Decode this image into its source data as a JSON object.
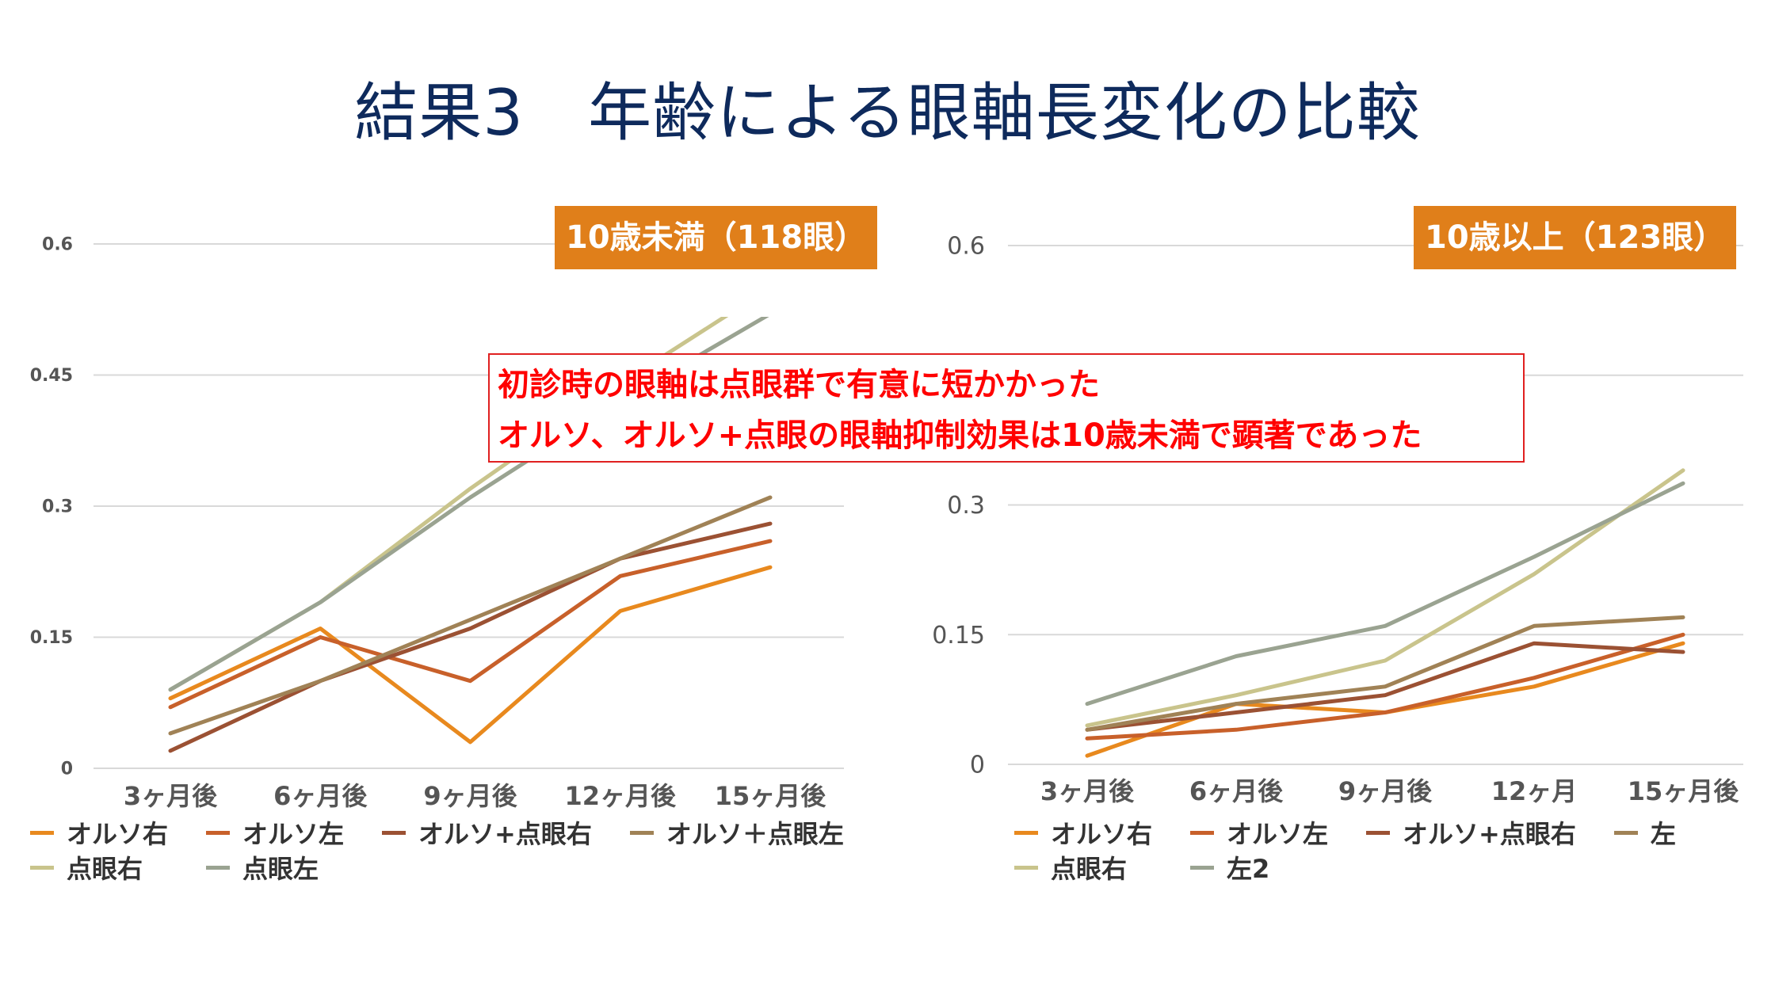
{
  "title": "結果3　年齢による眼軸長変化の比較",
  "note": {
    "line1": "初診時の眼軸は点眼群で有意に短かかった",
    "line2": "オルソ、オルソ+点眼の眼軸抑制効果は10歳未満で顕著であった"
  },
  "chart_data": [
    {
      "type": "line",
      "badge": "10歳未満（118眼）",
      "categories": [
        "3ヶ月後",
        "6ヶ月後",
        "9ヶ月後",
        "12ヶ月後",
        "15ヶ月後"
      ],
      "ylim": [
        0,
        0.6
      ],
      "yticks": [
        0,
        0.15,
        0.3,
        0.45,
        0.6
      ],
      "ytick_labels": [
        "0",
        "0.15",
        "0.3",
        "0.45",
        "0.6"
      ],
      "grid": true,
      "legend_position": "bottom",
      "series": [
        {
          "name": "オルソ右",
          "color": "#e8891e",
          "values": [
            0.08,
            0.16,
            0.03,
            0.18,
            0.23
          ]
        },
        {
          "name": "オルソ左",
          "color": "#c8602a",
          "values": [
            0.07,
            0.15,
            0.1,
            0.22,
            0.26
          ]
        },
        {
          "name": "オルソ+点眼右",
          "color": "#9b5133",
          "values": [
            0.02,
            0.1,
            0.16,
            0.24,
            0.28
          ]
        },
        {
          "name": "オルソ＋点眼左",
          "color": "#a08256",
          "values": [
            0.04,
            0.1,
            0.17,
            0.24,
            0.31
          ]
        },
        {
          "name": "点眼右",
          "color": "#c9c48c",
          "values": [
            0.09,
            0.19,
            0.32,
            0.44,
            0.55
          ]
        },
        {
          "name": "点眼左",
          "color": "#9aa391",
          "values": [
            0.09,
            0.19,
            0.31,
            0.42,
            0.52
          ]
        }
      ]
    },
    {
      "type": "line",
      "badge": "10歳以上（123眼）",
      "categories": [
        "3ヶ月後",
        "6ヶ月後",
        "9ヶ月後",
        "12ヶ月",
        "15ヶ月後"
      ],
      "ylim": [
        0,
        0.6
      ],
      "yticks": [
        0,
        0.15,
        0.3,
        0.45,
        0.6
      ],
      "ytick_labels": [
        "0",
        "0.15",
        "0.3",
        "",
        "0.6"
      ],
      "grid": true,
      "legend_position": "bottom",
      "series": [
        {
          "name": "オルソ右",
          "color": "#e8891e",
          "values": [
            0.01,
            0.07,
            0.06,
            0.09,
            0.14
          ]
        },
        {
          "name": "オルソ左",
          "color": "#c8602a",
          "values": [
            0.03,
            0.04,
            0.06,
            0.1,
            0.15
          ]
        },
        {
          "name": "オルソ+点眼右",
          "color": "#9b5133",
          "values": [
            0.04,
            0.06,
            0.08,
            0.14,
            0.13
          ]
        },
        {
          "name": "左",
          "color": "#a08256",
          "values": [
            0.04,
            0.07,
            0.09,
            0.16,
            0.17
          ]
        },
        {
          "name": "点眼右",
          "color": "#c9c48c",
          "values": [
            0.045,
            0.08,
            0.12,
            0.22,
            0.34
          ]
        },
        {
          "name": "左2",
          "color": "#9aa391",
          "values": [
            0.07,
            0.125,
            0.16,
            0.24,
            0.325
          ]
        }
      ]
    }
  ]
}
